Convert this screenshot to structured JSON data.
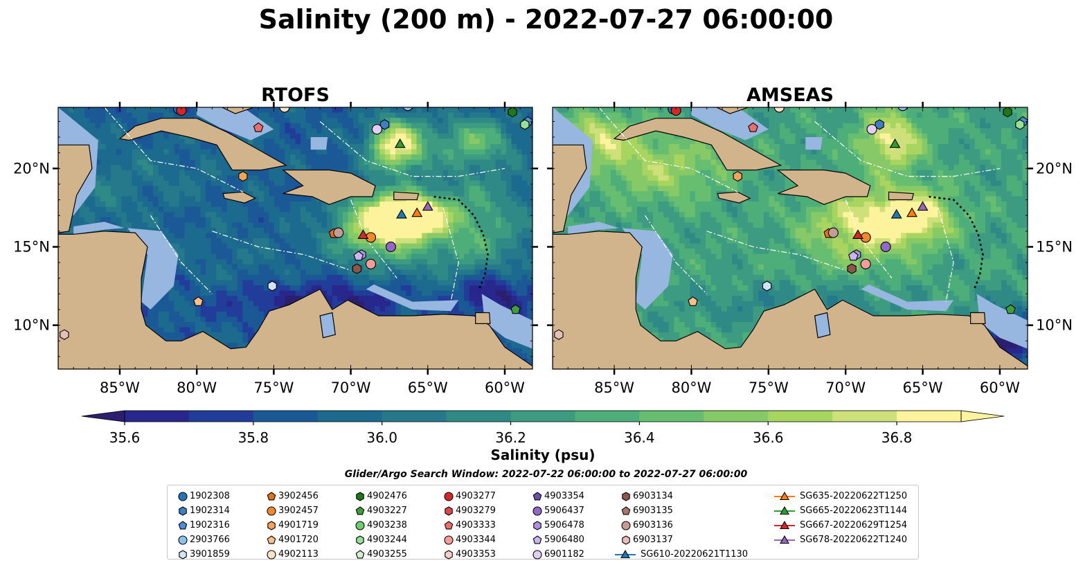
{
  "title": "Salinity (200 m) - 2022-07-27 06:00:00",
  "colors": {
    "land": "#d2b48c",
    "shelf": "#97b6e0",
    "ocean_low": "#2b1f6e",
    "ocean_high": "#fdf39d"
  },
  "chart_data": [
    {
      "type": "heatmap",
      "title": "RTOFS",
      "xlim": [
        -89,
        -58.2
      ],
      "ylim": [
        7.2,
        23.9
      ],
      "x_ticks": [
        -85,
        -80,
        -75,
        -70,
        -65,
        -60
      ],
      "x_tick_labels": [
        "85°W",
        "80°W",
        "75°W",
        "70°W",
        "65°W",
        "60°W"
      ],
      "y_ticks": [
        10,
        15,
        20
      ],
      "y_tick_labels": [
        "10°N",
        "15°N",
        "20°N"
      ],
      "y_axis_side": "left",
      "grid": false
    },
    {
      "type": "heatmap",
      "title": "AMSEAS",
      "xlim": [
        -89,
        -58.2
      ],
      "ylim": [
        7.2,
        23.9
      ],
      "x_ticks": [
        -85,
        -80,
        -75,
        -70,
        -65,
        -60
      ],
      "x_tick_labels": [
        "85°W",
        "80°W",
        "75°W",
        "70°W",
        "65°W",
        "60°W"
      ],
      "y_ticks": [
        10,
        15,
        20
      ],
      "y_tick_labels": [
        "10°N",
        "15°N",
        "20°N"
      ],
      "y_axis_side": "right",
      "grid": false
    }
  ],
  "colorbar": {
    "label": "Salinity (psu)",
    "min": 35.6,
    "max": 36.9,
    "step": 0.1,
    "extend": "both",
    "ticks": [
      35.6,
      35.8,
      36.0,
      36.2,
      36.4,
      36.6,
      36.8
    ],
    "tick_labels": [
      "35.6",
      "35.8",
      "36.0",
      "36.2",
      "36.4",
      "36.6",
      "36.8"
    ],
    "colors": [
      "#2b1f6e",
      "#28278e",
      "#223c9a",
      "#1b5996",
      "#1c6b8f",
      "#25798b",
      "#2f8a86",
      "#3c9b80",
      "#4eae79",
      "#67be70",
      "#87c966",
      "#a8d460",
      "#cee07a",
      "#fdf39d"
    ]
  },
  "legend": {
    "title": "Glider/Argo Search Window: 2022-07-22 06:00:00 to 2022-07-27 06:00:00",
    "entries": [
      {
        "label": "1902308",
        "marker": "circle",
        "color": "#1f77b4",
        "lon": -81.2,
        "lat": 23.8
      },
      {
        "label": "1902314",
        "marker": "hexagon",
        "color": "#3b7fc4",
        "lon": -67.8,
        "lat": 22.8
      },
      {
        "label": "1902316",
        "marker": "pentagon",
        "color": "#4a90d6",
        "lon": -58.5,
        "lat": 23.0
      },
      {
        "label": "2903766",
        "marker": "circle",
        "color": "#8ec1e8",
        "lon": -66.3,
        "lat": 24.0
      },
      {
        "label": "3901859",
        "marker": "hexagon",
        "color": "#cfe5f7",
        "lon": -75.1,
        "lat": 12.5
      },
      {
        "label": "3902456",
        "marker": "pentagon",
        "color": "#e8730c",
        "lon": -71.1,
        "lat": 15.85
      },
      {
        "label": "3902457",
        "marker": "circle",
        "color": "#f2892a",
        "lon": -68.7,
        "lat": 15.6
      },
      {
        "label": "4901719",
        "marker": "hexagon",
        "color": "#f6a35a",
        "lon": -77.0,
        "lat": 19.5
      },
      {
        "label": "4901720",
        "marker": "pentagon",
        "color": "#f9bf87",
        "lon": -79.9,
        "lat": 11.5
      },
      {
        "label": "4902113",
        "marker": "circle",
        "color": "#fde2c4",
        "lon": -74.3,
        "lat": 23.9
      },
      {
        "label": "4902476",
        "marker": "hexagon",
        "color": "#1a7a1a",
        "lon": -59.5,
        "lat": 23.6
      },
      {
        "label": "4903227",
        "marker": "pentagon",
        "color": "#3ba03b",
        "lon": -59.3,
        "lat": 11.0
      },
      {
        "label": "4903238",
        "marker": "circle",
        "color": "#6ccd6c",
        "lon": -62.0,
        "lat": 24.2
      },
      {
        "label": "4903244",
        "marker": "hexagon",
        "color": "#97e097",
        "lon": -58.7,
        "lat": 22.8
      },
      {
        "label": "4903255",
        "marker": "pentagon",
        "color": "#d2f4d2",
        "lon": -62.5,
        "lat": 24.2
      },
      {
        "label": "4903277",
        "marker": "circle",
        "color": "#d62728",
        "lon": -81.0,
        "lat": 23.7
      },
      {
        "label": "4903279",
        "marker": "hexagon",
        "color": "#e0474a",
        "lon": -70.0,
        "lat": 24.2
      },
      {
        "label": "4903333",
        "marker": "pentagon",
        "color": "#ec6e6b",
        "lon": -76.0,
        "lat": 22.6
      },
      {
        "label": "4903344",
        "marker": "circle",
        "color": "#f59b98",
        "lon": -68.7,
        "lat": 13.9
      },
      {
        "label": "4903353",
        "marker": "hexagon",
        "color": "#fbcfcb",
        "lon": -63.8,
        "lat": 24.3
      },
      {
        "label": "4903354",
        "marker": "pentagon",
        "color": "#6a4fb3",
        "lon": -60.5,
        "lat": 24.3
      },
      {
        "label": "5906437",
        "marker": "circle",
        "color": "#9268c8",
        "lon": -67.4,
        "lat": 15.0
      },
      {
        "label": "5906478",
        "marker": "hexagon",
        "color": "#af8fe0",
        "lon": -69.3,
        "lat": 14.5
      },
      {
        "label": "5906480",
        "marker": "pentagon",
        "color": "#cdb4f0",
        "lon": -69.5,
        "lat": 14.4
      },
      {
        "label": "6901182",
        "marker": "circle",
        "color": "#e2cdf8",
        "lon": -68.3,
        "lat": 22.5
      },
      {
        "label": "6903134",
        "marker": "hexagon",
        "color": "#8c564b",
        "lon": -69.6,
        "lat": 13.6
      },
      {
        "label": "6903135",
        "marker": "pentagon",
        "color": "#a9776b",
        "lon": -70.0,
        "lat": 24.3
      },
      {
        "label": "6903136",
        "marker": "circle",
        "color": "#c49c94",
        "lon": -70.8,
        "lat": 15.9
      },
      {
        "label": "6903137",
        "marker": "hexagon",
        "color": "#e7bfb6",
        "lon": -88.6,
        "lat": 9.4
      },
      {
        "label": "SG610-20220621T1130",
        "marker": "triangle",
        "color": "#1f77b4",
        "lon": -66.7,
        "lat": 17.1
      },
      {
        "label": "SG635-20220622T1250",
        "marker": "triangle",
        "color": "#ff7f0e",
        "lon": -65.7,
        "lat": 17.2
      },
      {
        "label": "SG665-20220623T1144",
        "marker": "triangle",
        "color": "#2ca02c",
        "lon": -66.8,
        "lat": 21.6
      },
      {
        "label": "SG667-20220629T1254",
        "marker": "triangle",
        "color": "#d62728",
        "lon": -69.2,
        "lat": 15.8
      },
      {
        "label": "SG678-20220622T1240",
        "marker": "triangle",
        "color": "#9467bd",
        "lon": -65.0,
        "lat": 17.6
      }
    ]
  }
}
